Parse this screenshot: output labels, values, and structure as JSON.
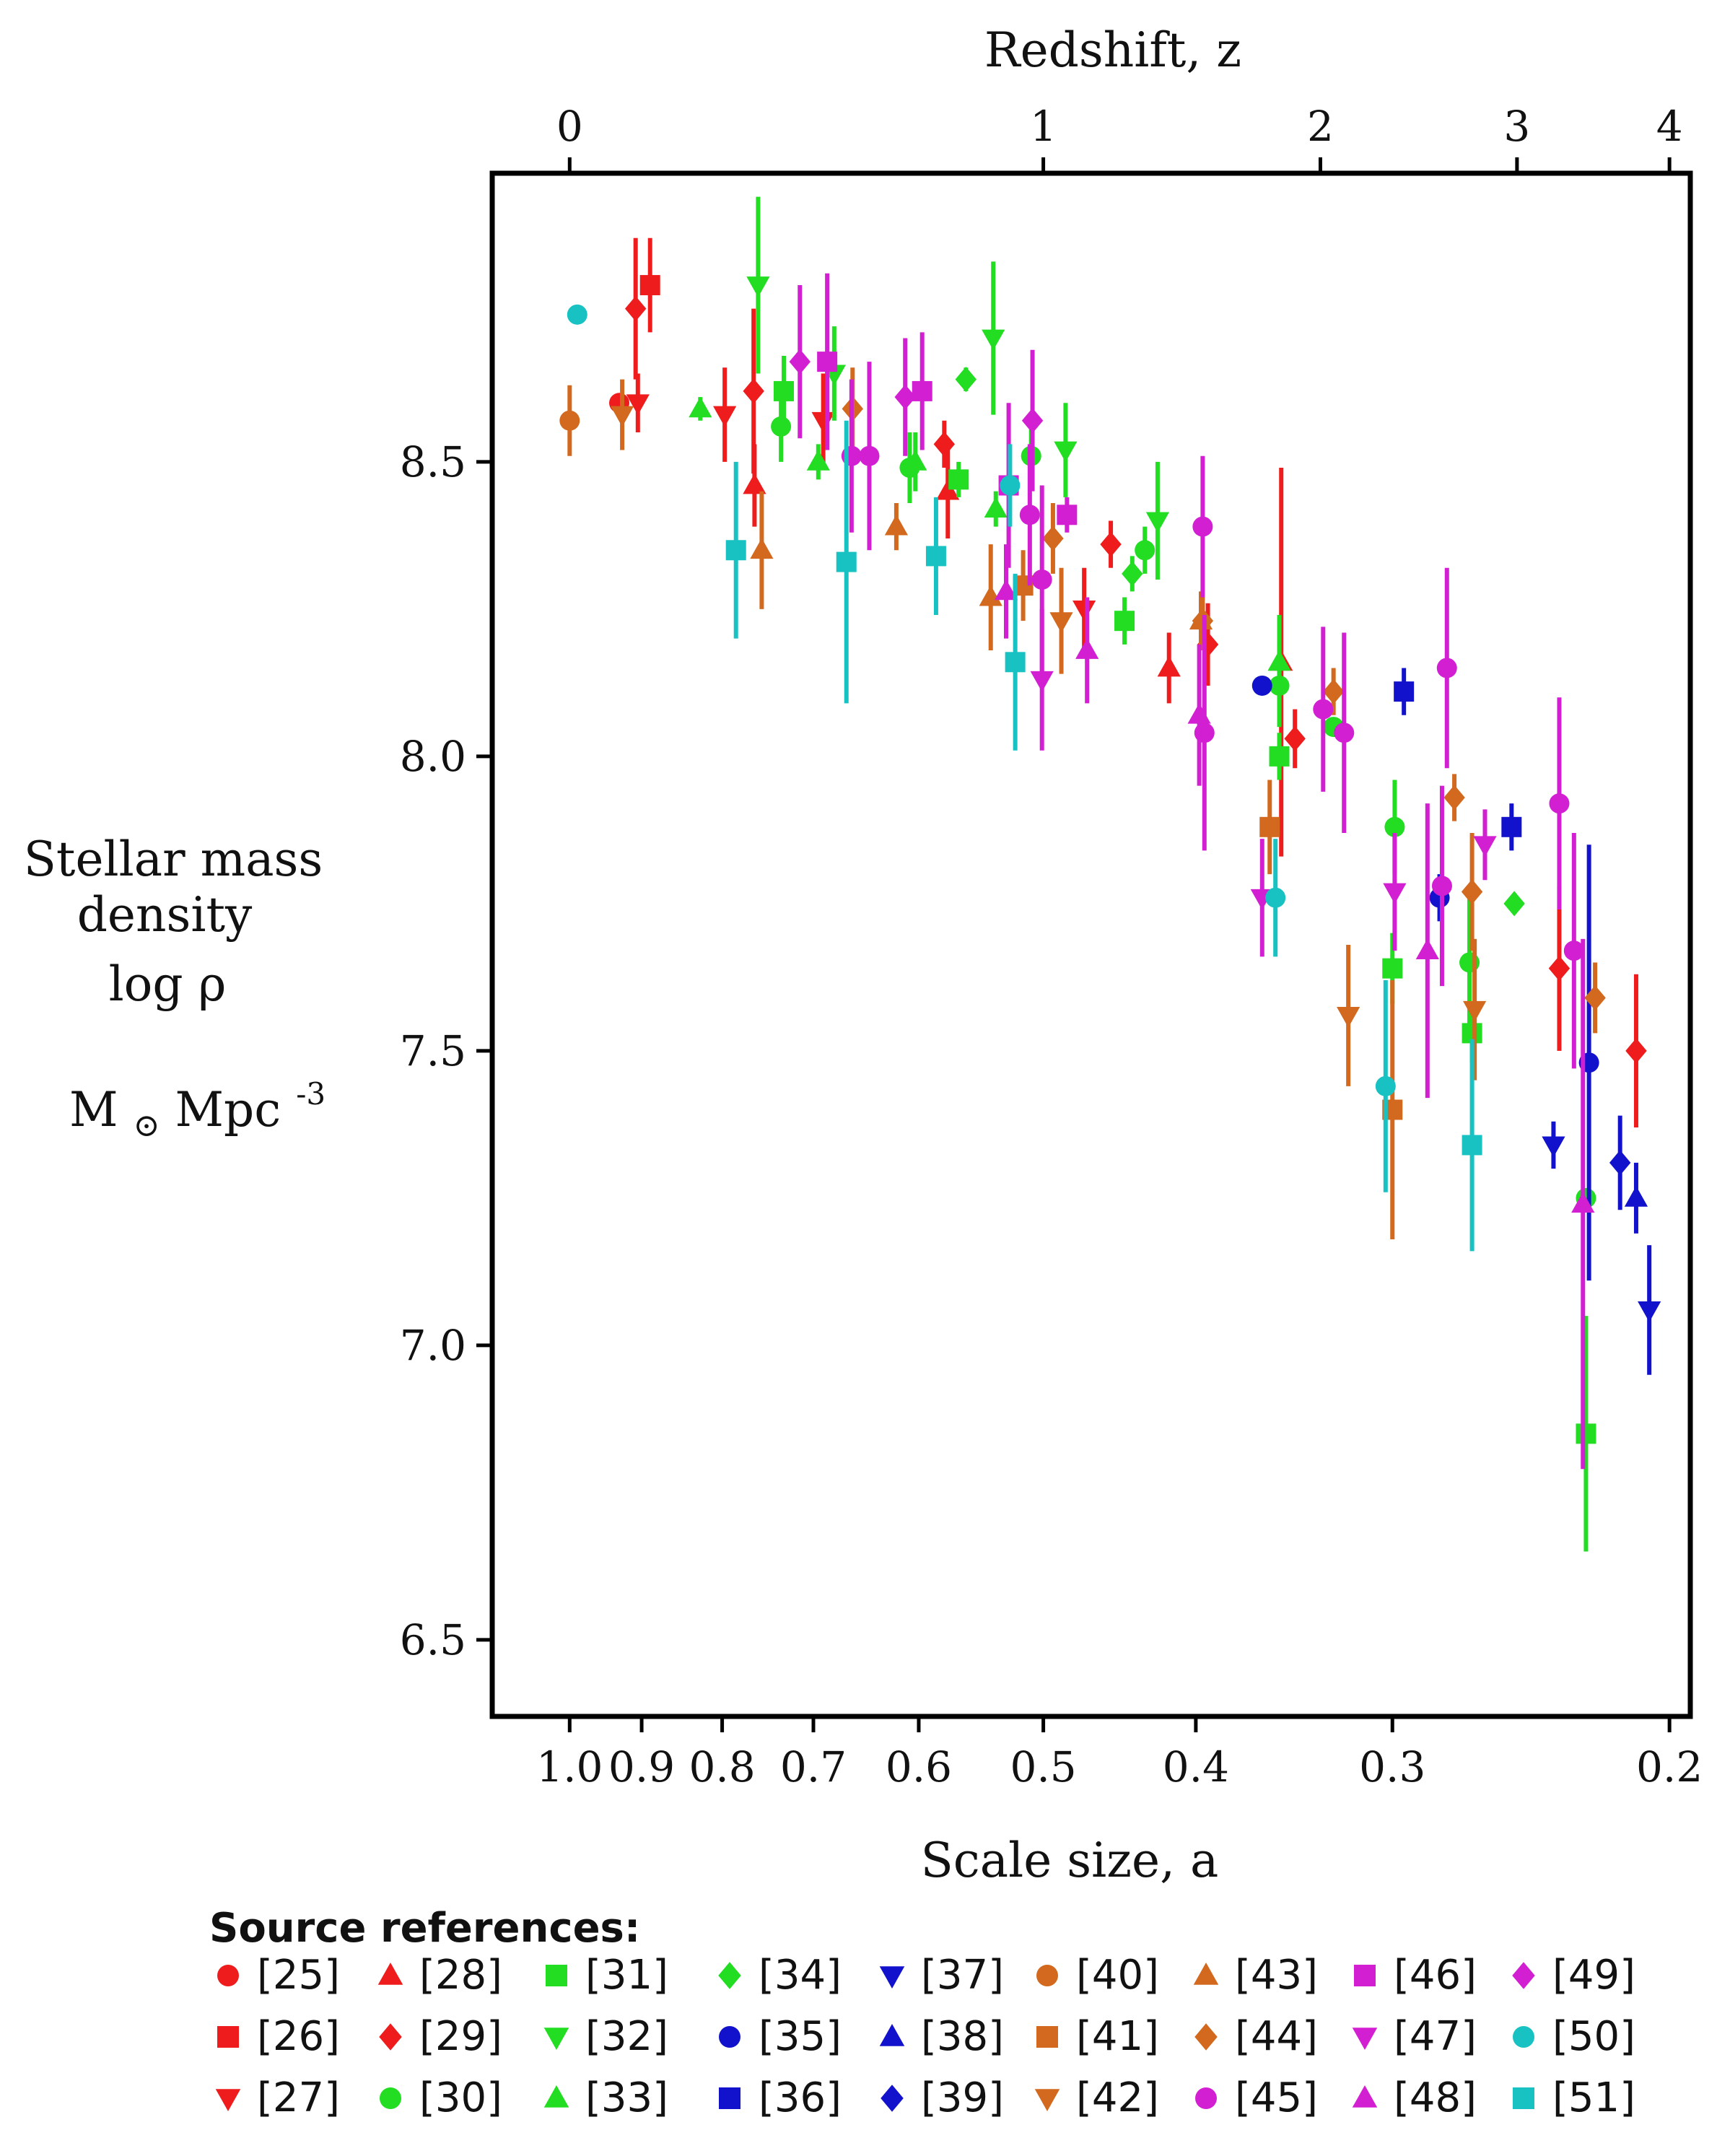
{
  "chart_data": {
    "type": "scatter",
    "title": "",
    "top_axis_label": "Redshift, z",
    "top_axis_ticks": [
      {
        "label": "0",
        "z": 0
      },
      {
        "label": "1",
        "z": 1
      },
      {
        "label": "2",
        "z": 2
      },
      {
        "label": "3",
        "z": 3
      },
      {
        "label": "4",
        "z": 4
      }
    ],
    "xlabel": "Scale size, a",
    "x_ticks": [
      {
        "label": "1.0",
        "a": 1.0
      },
      {
        "label": "0.9",
        "a": 0.9
      },
      {
        "label": "0.8",
        "a": 0.8
      },
      {
        "label": "0.7",
        "a": 0.7
      },
      {
        "label": "0.6",
        "a": 0.6
      },
      {
        "label": "0.5",
        "a": 0.5
      },
      {
        "label": "0.4",
        "a": 0.4
      },
      {
        "label": "0.3",
        "a": 0.3
      },
      {
        "label": "0.2",
        "a": 0.2
      }
    ],
    "xscale": "log",
    "xlim": [
      1.12,
      0.194
    ],
    "ylabel_lines": [
      "Stellar mass",
      "density",
      "log ρ"
    ],
    "yunit_base": "M",
    "yunit_rest": " Mpc",
    "yunit_exp": "-3",
    "y_ticks": [
      {
        "label": "6.5",
        "v": 6.5
      },
      {
        "label": "7.0",
        "v": 7.0
      },
      {
        "label": "7.5",
        "v": 7.5
      },
      {
        "label": "8.0",
        "v": 8.0
      },
      {
        "label": "8.5",
        "v": 8.5
      }
    ],
    "ylim": [
      6.37,
      8.99
    ],
    "legend_title": "Source references:",
    "series": [
      {
        "name": "[25]",
        "color": "#ee1c1c",
        "marker": "circle",
        "points": [
          [
            0.93,
            8.6,
            0
          ]
        ]
      },
      {
        "name": "[26]",
        "color": "#ee1c1c",
        "marker": "square",
        "points": [
          [
            0.889,
            8.8,
            0.08
          ]
        ]
      },
      {
        "name": "[27]",
        "color": "#ee1c1c",
        "marker": "tri-down",
        "points": [
          [
            0.905,
            8.6,
            0.05
          ],
          [
            0.797,
            8.58,
            0.08
          ],
          [
            0.69,
            8.57,
            0.08
          ],
          [
            0.471,
            8.25,
            0.07
          ]
        ]
      },
      {
        "name": "[28]",
        "color": "#ee1c1c",
        "marker": "tri-up",
        "points": [
          [
            0.763,
            8.46,
            0.07
          ],
          [
            0.575,
            8.45,
            0.08
          ],
          [
            0.416,
            8.15,
            0.06
          ],
          [
            0.353,
            8.16,
            0.33
          ]
        ]
      },
      {
        "name": "[29]",
        "color": "#ee1c1c",
        "marker": "diamond",
        "points": [
          [
            0.908,
            8.76,
            0.12
          ],
          [
            0.764,
            8.62,
            0.14
          ],
          [
            0.578,
            8.53,
            0.04
          ],
          [
            0.453,
            8.36,
            0.04
          ],
          [
            0.393,
            8.19,
            0.07
          ],
          [
            0.346,
            8.03,
            0.05
          ],
          [
            0.235,
            7.64,
            0.14
          ],
          [
            0.21,
            7.5,
            0.13
          ]
        ]
      },
      {
        "name": "[30]",
        "color": "#22dd22",
        "marker": "circle",
        "points": [
          [
            0.734,
            8.56,
            0.06
          ],
          [
            0.608,
            8.49,
            0.06
          ],
          [
            0.509,
            8.51,
            0.05
          ],
          [
            0.431,
            8.35,
            0.04
          ],
          [
            0.354,
            8.12,
            0.07
          ],
          [
            0.327,
            8.05,
            0
          ],
          [
            0.299,
            7.88,
            0.08
          ],
          [
            0.268,
            7.65,
            0.13
          ],
          [
            0.226,
            7.25,
            0
          ]
        ]
      },
      {
        "name": "[31]",
        "color": "#22dd22",
        "marker": "square",
        "points": [
          [
            0.731,
            8.62,
            0.06
          ],
          [
            0.566,
            8.47,
            0.03
          ],
          [
            0.444,
            8.23,
            0.04
          ],
          [
            0.354,
            8.0,
            0.04
          ],
          [
            0.3,
            7.64,
            0.06
          ],
          [
            0.267,
            7.53,
            0.05
          ],
          [
            0.226,
            6.85,
            0.2
          ]
        ]
      },
      {
        "name": "[32]",
        "color": "#22dd22",
        "marker": "tri-down",
        "points": [
          [
            0.759,
            8.8,
            0.15
          ],
          [
            0.679,
            8.65,
            0.08
          ],
          [
            0.538,
            8.71,
            0.13
          ],
          [
            0.484,
            8.52,
            0.08
          ],
          [
            0.423,
            8.4,
            0.1
          ]
        ]
      },
      {
        "name": "[33]",
        "color": "#22dd22",
        "marker": "tri-up",
        "points": [
          [
            0.826,
            8.59,
            0.02
          ],
          [
            0.695,
            8.5,
            0.03
          ],
          [
            0.603,
            8.5,
            0.05
          ],
          [
            0.536,
            8.42,
            0.03
          ],
          [
            0.354,
            8.16,
            0.08
          ]
        ]
      },
      {
        "name": "[34]",
        "color": "#22dd22",
        "marker": "diamond",
        "points": [
          [
            0.56,
            8.64,
            0.02
          ],
          [
            0.439,
            8.31,
            0.03
          ],
          [
            0.251,
            7.75,
            0
          ]
        ]
      },
      {
        "name": "[35]",
        "color": "#1212cc",
        "marker": "circle",
        "points": [
          [
            0.363,
            8.12,
            0
          ],
          [
            0.28,
            7.76,
            0.04
          ],
          [
            0.225,
            7.48,
            0.37
          ]
        ]
      },
      {
        "name": "[36]",
        "color": "#1212cc",
        "marker": "square",
        "points": [
          [
            0.295,
            8.11,
            0.04
          ],
          [
            0.252,
            7.88,
            0.04
          ]
        ]
      },
      {
        "name": "[37]",
        "color": "#1212cc",
        "marker": "tri-down",
        "points": [
          [
            0.237,
            7.34,
            0.04
          ],
          [
            0.206,
            7.06,
            0.11
          ]
        ]
      },
      {
        "name": "[38]",
        "color": "#1212cc",
        "marker": "tri-up",
        "points": [
          [
            0.21,
            7.25,
            0.06
          ]
        ]
      },
      {
        "name": "[39]",
        "color": "#1212cc",
        "marker": "diamond",
        "points": [
          [
            0.215,
            7.31,
            0.08
          ]
        ]
      },
      {
        "name": "[40]",
        "color": "#d2691e",
        "marker": "circle",
        "points": [
          [
            1.0,
            8.57,
            0.06
          ]
        ]
      },
      {
        "name": "[41]",
        "color": "#d2691e",
        "marker": "square",
        "points": [
          [
            0.515,
            8.29,
            0.06
          ],
          [
            0.359,
            7.88,
            0.08
          ],
          [
            0.3,
            7.4,
            0.22
          ]
        ]
      },
      {
        "name": "[42]",
        "color": "#d2691e",
        "marker": "tri-down",
        "points": [
          [
            0.926,
            8.58,
            0.06
          ],
          [
            0.487,
            8.23,
            0.09
          ],
          [
            0.32,
            7.56,
            0.12
          ],
          [
            0.266,
            7.57,
            0.12
          ]
        ]
      },
      {
        "name": "[43]",
        "color": "#d2691e",
        "marker": "tri-up",
        "points": [
          [
            0.755,
            8.35,
            0.1
          ],
          [
            0.62,
            8.39,
            0.04
          ],
          [
            0.54,
            8.27,
            0.09
          ],
          [
            0.397,
            8.23,
            0.05
          ]
        ]
      },
      {
        "name": "[44]",
        "color": "#d2691e",
        "marker": "diamond",
        "points": [
          [
            0.661,
            8.59,
            0.07
          ],
          [
            0.493,
            8.37,
            0.06
          ],
          [
            0.396,
            8.23,
            0.04
          ],
          [
            0.327,
            8.11,
            0.04
          ],
          [
            0.274,
            7.93,
            0.04
          ],
          [
            0.267,
            7.77,
            0.1
          ],
          [
            0.223,
            7.59,
            0.06
          ]
        ]
      },
      {
        "name": "[45]",
        "color": "#d21fd2",
        "marker": "circle",
        "points": [
          [
            0.662,
            8.51,
            0.13
          ],
          [
            0.645,
            8.51,
            0.16
          ],
          [
            0.51,
            8.41,
            0.12
          ],
          [
            0.501,
            8.3,
            0.16
          ],
          [
            0.396,
            8.39,
            0.12
          ],
          [
            0.395,
            8.04,
            0.2
          ],
          [
            0.332,
            8.08,
            0.14
          ],
          [
            0.322,
            8.04,
            0.17
          ],
          [
            0.277,
            8.15,
            0.17
          ],
          [
            0.279,
            7.78,
            0.17
          ],
          [
            0.235,
            7.92,
            0.18
          ],
          [
            0.23,
            7.67,
            0.2
          ]
        ]
      },
      {
        "name": "[46]",
        "color": "#d21fd2",
        "marker": "square",
        "points": [
          [
            0.686,
            8.67,
            0.15
          ],
          [
            0.597,
            8.62,
            0.1
          ],
          [
            0.526,
            8.46,
            0.14
          ],
          [
            0.483,
            8.41,
            0.03
          ]
        ]
      },
      {
        "name": "[47]",
        "color": "#d21fd2",
        "marker": "tri-down",
        "points": [
          [
            0.501,
            8.13,
            0.12
          ],
          [
            0.363,
            7.76,
            0.1
          ],
          [
            0.299,
            7.77,
            0.1
          ],
          [
            0.262,
            7.85,
            0.06
          ]
        ]
      },
      {
        "name": "[48]",
        "color": "#d21fd2",
        "marker": "tri-up",
        "points": [
          [
            0.528,
            8.28,
            0.08
          ],
          [
            0.469,
            8.18,
            0.09
          ],
          [
            0.398,
            8.07,
            0.12
          ],
          [
            0.285,
            7.67,
            0.25
          ],
          [
            0.227,
            7.24,
            0.45
          ]
        ]
      },
      {
        "name": "[49]",
        "color": "#d21fd2",
        "marker": "diamond",
        "points": [
          [
            0.714,
            8.67,
            0.13
          ],
          [
            0.612,
            8.61,
            0.1
          ],
          [
            0.508,
            8.57,
            0.12
          ]
        ]
      },
      {
        "name": "[50]",
        "color": "#19c2c2",
        "marker": "circle",
        "points": [
          [
            0.989,
            8.75,
            0
          ],
          [
            0.525,
            8.46,
            0.07
          ],
          [
            0.356,
            7.76,
            0.1
          ],
          [
            0.303,
            7.44,
            0.18
          ]
        ]
      },
      {
        "name": "[51]",
        "color": "#19c2c2",
        "marker": "square",
        "points": [
          [
            0.784,
            8.35,
            0.15
          ],
          [
            0.667,
            8.33,
            0.24
          ],
          [
            0.585,
            8.34,
            0.1
          ],
          [
            0.521,
            8.16,
            0.15
          ],
          [
            0.267,
            7.34,
            0.18
          ]
        ]
      }
    ]
  }
}
